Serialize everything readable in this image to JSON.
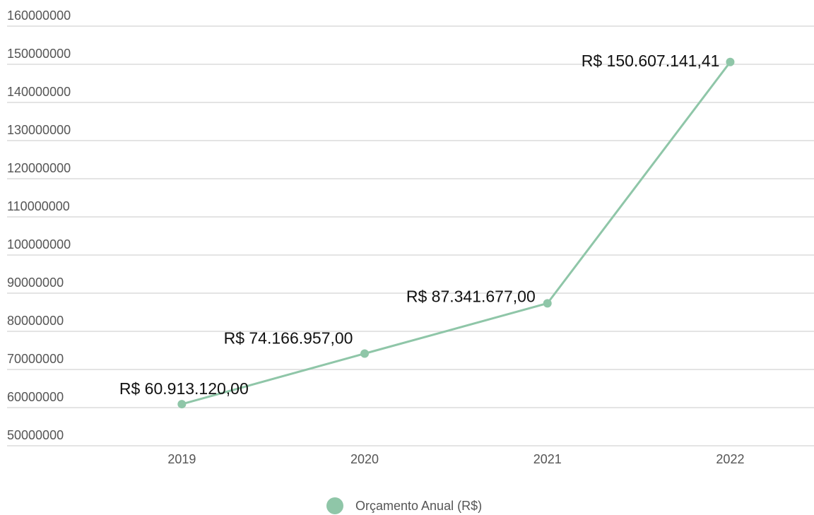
{
  "chart_data": {
    "type": "line",
    "categories": [
      "2019",
      "2020",
      "2021",
      "2022"
    ],
    "series": [
      {
        "name": "Orçamento Anual (R$)",
        "color": "#8fc6a8",
        "values": [
          60913120,
          74166957,
          87341677,
          150607141.41
        ],
        "value_labels": [
          "R$ 60.913.120,00",
          "R$ 74.166.957,00",
          "R$ 87.341.677,00",
          "R$ 150.607.141,41"
        ]
      }
    ],
    "ylim": [
      50000000,
      160000000
    ],
    "yticks": [
      50000000,
      60000000,
      70000000,
      80000000,
      90000000,
      100000000,
      110000000,
      120000000,
      130000000,
      140000000,
      150000000,
      160000000
    ],
    "grid": true,
    "legend": "bottom"
  }
}
